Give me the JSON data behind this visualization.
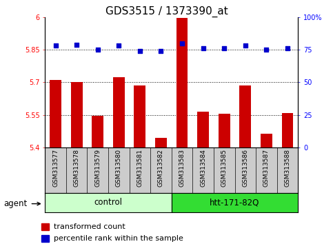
{
  "title": "GDS3515 / 1373390_at",
  "samples": [
    "GSM313577",
    "GSM313578",
    "GSM313579",
    "GSM313580",
    "GSM313581",
    "GSM313582",
    "GSM313583",
    "GSM313584",
    "GSM313585",
    "GSM313586",
    "GSM313587",
    "GSM313588"
  ],
  "bar_values": [
    5.71,
    5.7,
    5.545,
    5.725,
    5.685,
    5.445,
    5.995,
    5.565,
    5.555,
    5.685,
    5.465,
    5.56
  ],
  "percentile_values": [
    78,
    79,
    75,
    78,
    74,
    74,
    80,
    76,
    76,
    78,
    75,
    76
  ],
  "bar_color": "#cc0000",
  "dot_color": "#0000cc",
  "ylim_left": [
    5.4,
    6.0
  ],
  "ylim_right": [
    0,
    100
  ],
  "yticks_left": [
    5.4,
    5.55,
    5.7,
    5.85,
    6.0
  ],
  "ytick_labels_left": [
    "5.4",
    "5.55",
    "5.7",
    "5.85",
    "6"
  ],
  "yticks_right": [
    0,
    25,
    50,
    75,
    100
  ],
  "ytick_labels_right": [
    "0",
    "25",
    "50",
    "75",
    "100%"
  ],
  "hlines": [
    5.55,
    5.7,
    5.85
  ],
  "ctrl_n": 6,
  "htt_n": 6,
  "group_control_label": "control",
  "group_htt_label": "htt-171-82Q",
  "agent_label": "agent",
  "legend_bar_label": "transformed count",
  "legend_dot_label": "percentile rank within the sample",
  "bar_width": 0.55,
  "background_color": "#ffffff",
  "tick_area_bg": "#cccccc",
  "control_bg": "#ccffcc",
  "htt_bg": "#33dd33",
  "title_fontsize": 11,
  "tick_fontsize": 7,
  "sample_fontsize": 6.5,
  "label_fontsize": 8.5,
  "legend_fontsize": 8
}
